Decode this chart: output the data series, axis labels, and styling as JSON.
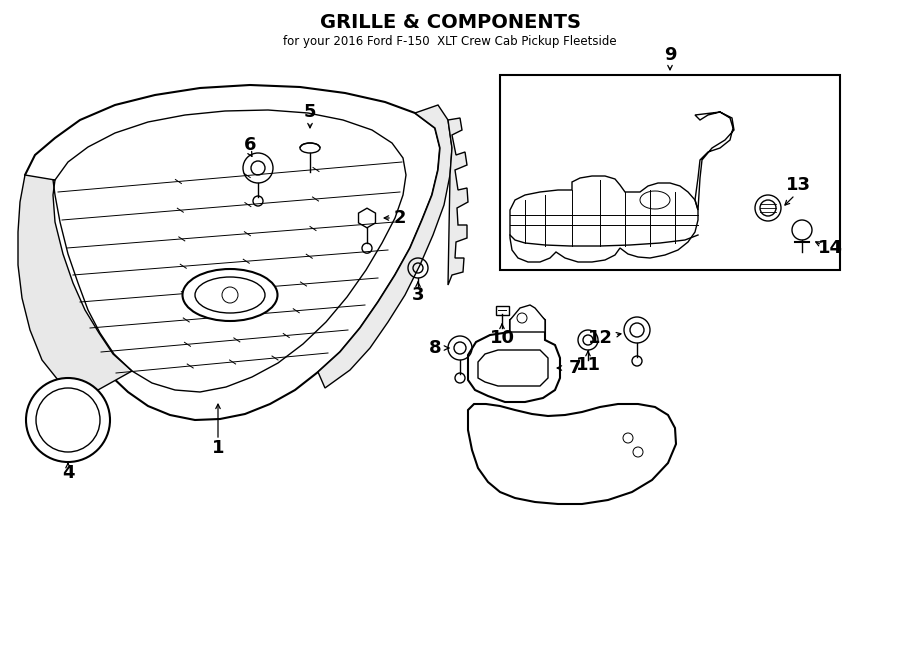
{
  "title": "GRILLE & COMPONENTS",
  "subtitle": "for your 2016 Ford F-150  XLT Crew Cab Pickup Fleetside",
  "bg": "#ffffff",
  "lc": "#000000",
  "fig_w": 9.0,
  "fig_h": 6.61,
  "dpi": 100
}
